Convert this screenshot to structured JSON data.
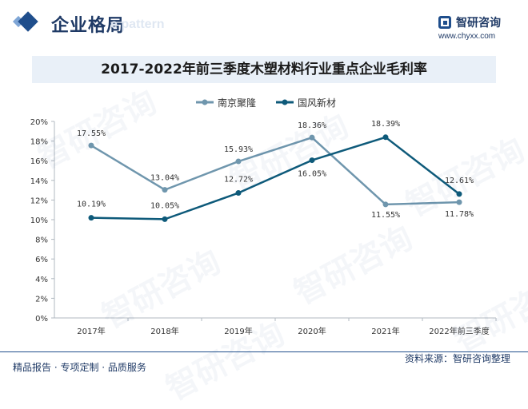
{
  "header": {
    "section_title": "企业格局",
    "section_subtitle": "e pattern",
    "logo_name": "智研咨询",
    "logo_url": "www.chyxx.com"
  },
  "footer": {
    "left": "精品报告 · 专项定制 · 品质服务",
    "right": "资料来源：智研咨询整理"
  },
  "watermark": "智研咨询",
  "colors": {
    "nanjing": "#6f96ad",
    "guofeng": "#0e5a7a",
    "axis": "#b0b8c0"
  },
  "chart_data": {
    "type": "line",
    "title": "2017-2022年前三季度木塑材料行业重点企业毛利率",
    "xlabel": "",
    "ylabel": "",
    "categories": [
      "2017年",
      "2018年",
      "2019年",
      "2020年",
      "2021年",
      "2022年前三季度"
    ],
    "ylim": [
      0,
      20
    ],
    "yticks": [
      "0%",
      "2%",
      "4%",
      "6%",
      "8%",
      "10%",
      "12%",
      "14%",
      "16%",
      "18%",
      "20%"
    ],
    "legend": "top-center",
    "grid": false,
    "series": [
      {
        "name": "南京聚隆",
        "values": [
          17.55,
          13.04,
          15.93,
          18.36,
          11.55,
          11.78
        ],
        "labels": [
          "17.55%",
          "13.04%",
          "15.93%",
          "18.36%",
          "11.55%",
          "11.78%"
        ],
        "color": "#6f96ad"
      },
      {
        "name": "国风新材",
        "values": [
          10.19,
          10.05,
          12.72,
          16.05,
          18.39,
          12.61
        ],
        "labels": [
          "10.19%",
          "10.05%",
          "12.72%",
          "16.05%",
          "18.39%",
          "12.61%"
        ],
        "color": "#0e5a7a"
      }
    ]
  }
}
